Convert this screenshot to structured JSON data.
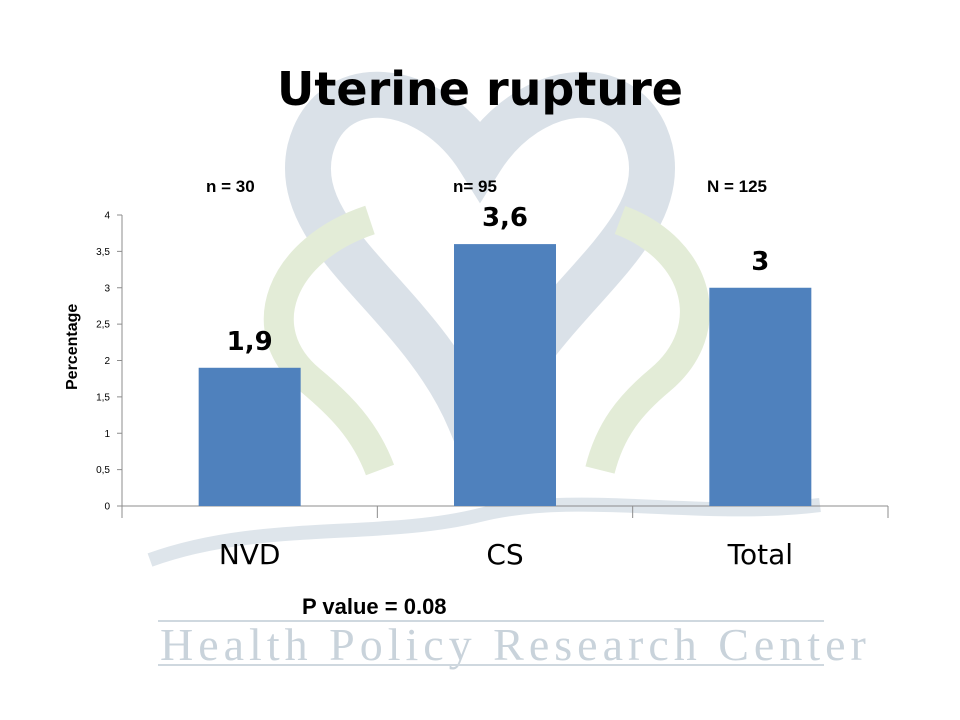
{
  "slide": {
    "title": "Uterine rupture",
    "counts": [
      "n = 30",
      "n= 95",
      "N = 125"
    ],
    "p_value": "P value = 0.08",
    "watermark_text": "Health Policy Research Center"
  },
  "colors": {
    "bar": "#4f81bd",
    "axis": "#8c8c8c",
    "watermark_green": "#e3ecd7",
    "watermark_blue": "#d6dee6"
  },
  "chart_data": {
    "type": "bar",
    "categories": [
      "NVD",
      "CS",
      "Total"
    ],
    "values": [
      1.9,
      3.6,
      3
    ],
    "data_labels": [
      "1,9",
      "3,6",
      "3"
    ],
    "ylabel": "Percentage",
    "ylim": [
      0,
      4
    ],
    "yticks": [
      0,
      0.5,
      1,
      1.5,
      2,
      2.5,
      3,
      3.5,
      4
    ],
    "ytick_labels": [
      "0",
      "0,5",
      "1",
      "1,5",
      "2",
      "2,5",
      "3",
      "3,5",
      "4"
    ],
    "grid": false,
    "legend": "none"
  }
}
